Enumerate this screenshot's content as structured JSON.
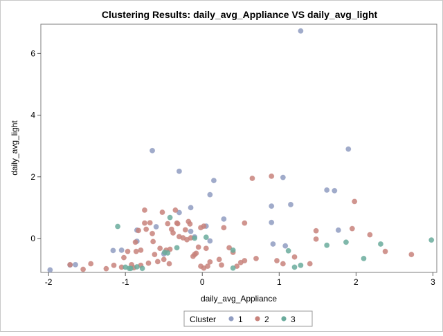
{
  "chart_data": {
    "type": "scatter",
    "title": "Clustering Results: daily_avg_Appliance VS daily_avg_light",
    "xlabel": "daily_avg_Appliance",
    "ylabel": "daily_avg_light",
    "xlim": [
      -2.1,
      3.05
    ],
    "ylim": [
      -1.1,
      6.95
    ],
    "xticks": [
      -2,
      -1,
      0,
      1,
      2,
      3
    ],
    "yticks": [
      0,
      2,
      4,
      6
    ],
    "grid": false,
    "legend": {
      "title": "Cluster",
      "position": "bottom-center"
    },
    "series": [
      {
        "name": "1",
        "color": "#8f9cc1",
        "points": [
          [
            -1.98,
            -1.02
          ],
          [
            -1.72,
            -0.86
          ],
          [
            -1.65,
            -0.85
          ],
          [
            -1.16,
            -0.39
          ],
          [
            -1.05,
            -0.38
          ],
          [
            -0.85,
            -0.09
          ],
          [
            -0.85,
            0.27
          ],
          [
            -0.65,
            2.85
          ],
          [
            -0.6,
            0.38
          ],
          [
            -0.3,
            2.18
          ],
          [
            -0.3,
            0.84
          ],
          [
            -0.15,
            1.0
          ],
          [
            -0.15,
            0.23
          ],
          [
            -0.1,
            0.05
          ],
          [
            0.05,
            0.4
          ],
          [
            0.1,
            1.42
          ],
          [
            0.15,
            1.88
          ],
          [
            0.28,
            0.63
          ],
          [
            0.1,
            -0.08
          ],
          [
            0.9,
            1.05
          ],
          [
            0.9,
            0.52
          ],
          [
            0.92,
            -0.18
          ],
          [
            1.05,
            1.98
          ],
          [
            1.08,
            -0.24
          ],
          [
            1.15,
            1.1
          ],
          [
            1.28,
            6.73
          ],
          [
            1.62,
            1.57
          ],
          [
            1.72,
            1.55
          ],
          [
            1.77,
            0.27
          ],
          [
            1.9,
            2.9
          ],
          [
            -0.5,
            -0.5
          ]
        ]
      },
      {
        "name": "2",
        "color": "#c8827b",
        "points": [
          [
            -1.72,
            -0.85
          ],
          [
            -1.55,
            -1.0
          ],
          [
            -1.45,
            -0.82
          ],
          [
            -1.25,
            -0.98
          ],
          [
            -1.15,
            -0.87
          ],
          [
            -1.05,
            -0.93
          ],
          [
            -1.02,
            -0.62
          ],
          [
            -0.97,
            -0.42
          ],
          [
            -0.92,
            -0.85
          ],
          [
            -0.89,
            -0.95
          ],
          [
            -0.87,
            -0.12
          ],
          [
            -0.86,
            -0.42
          ],
          [
            -0.83,
            0.26
          ],
          [
            -0.8,
            -0.38
          ],
          [
            -0.8,
            -0.87
          ],
          [
            -0.75,
            0.5
          ],
          [
            -0.75,
            0.92
          ],
          [
            -0.73,
            0.3
          ],
          [
            -0.7,
            -0.8
          ],
          [
            -0.68,
            0.51
          ],
          [
            -0.65,
            0.16
          ],
          [
            -0.64,
            -0.1
          ],
          [
            -0.62,
            -0.52
          ],
          [
            -0.58,
            -0.75
          ],
          [
            -0.55,
            -0.32
          ],
          [
            -0.52,
            0.85
          ],
          [
            -0.5,
            -0.68
          ],
          [
            -0.47,
            -0.38
          ],
          [
            -0.45,
            0.48
          ],
          [
            -0.43,
            -0.82
          ],
          [
            -0.42,
            -0.35
          ],
          [
            -0.4,
            0.3
          ],
          [
            -0.38,
            0.18
          ],
          [
            -0.35,
            0.92
          ],
          [
            -0.33,
            0.5
          ],
          [
            -0.32,
            0.48
          ],
          [
            -0.3,
            0.06
          ],
          [
            -0.25,
            0.02
          ],
          [
            -0.22,
            0.28
          ],
          [
            -0.2,
            -0.04
          ],
          [
            -0.18,
            0.55
          ],
          [
            -0.16,
            0.47
          ],
          [
            -0.15,
            0.02
          ],
          [
            -0.12,
            -0.58
          ],
          [
            -0.1,
            -0.52
          ],
          [
            -0.08,
            -0.48
          ],
          [
            -0.05,
            -0.28
          ],
          [
            -0.02,
            0.35
          ],
          [
            -0.02,
            -0.9
          ],
          [
            0.02,
            0.4
          ],
          [
            0.02,
            -0.96
          ],
          [
            0.05,
            -0.32
          ],
          [
            0.07,
            -0.9
          ],
          [
            0.1,
            -0.76
          ],
          [
            0.22,
            -0.68
          ],
          [
            0.25,
            -0.86
          ],
          [
            0.28,
            0.35
          ],
          [
            0.35,
            -0.3
          ],
          [
            0.4,
            -0.45
          ],
          [
            0.45,
            -0.9
          ],
          [
            0.5,
            -0.78
          ],
          [
            0.55,
            -0.72
          ],
          [
            0.55,
            0.5
          ],
          [
            0.65,
            1.95
          ],
          [
            0.7,
            -0.65
          ],
          [
            0.9,
            2.02
          ],
          [
            0.97,
            -0.72
          ],
          [
            1.05,
            -0.82
          ],
          [
            1.2,
            -0.6
          ],
          [
            1.4,
            -0.82
          ],
          [
            1.48,
            0.25
          ],
          [
            1.48,
            -0.02
          ],
          [
            1.95,
            0.32
          ],
          [
            1.98,
            1.2
          ],
          [
            2.18,
            0.12
          ],
          [
            2.38,
            -0.42
          ],
          [
            2.72,
            -0.52
          ]
        ]
      },
      {
        "name": "3",
        "color": "#6aab9c",
        "points": [
          [
            -1.1,
            0.39
          ],
          [
            -1.0,
            -0.93
          ],
          [
            -0.95,
            -0.97
          ],
          [
            -0.93,
            -0.97
          ],
          [
            -0.85,
            -0.92
          ],
          [
            -0.78,
            -0.97
          ],
          [
            -0.49,
            -0.45
          ],
          [
            -0.45,
            -0.47
          ],
          [
            -0.42,
            0.68
          ],
          [
            -0.33,
            -0.3
          ],
          [
            -0.1,
            0.01
          ],
          [
            0.05,
            0.04
          ],
          [
            0.4,
            -0.38
          ],
          [
            0.4,
            -0.96
          ],
          [
            1.12,
            -0.4
          ],
          [
            1.2,
            -0.93
          ],
          [
            1.28,
            -0.87
          ],
          [
            1.62,
            -0.22
          ],
          [
            1.87,
            -0.12
          ],
          [
            2.1,
            -0.65
          ],
          [
            2.32,
            -0.18
          ],
          [
            2.98,
            -0.05
          ]
        ]
      }
    ]
  }
}
